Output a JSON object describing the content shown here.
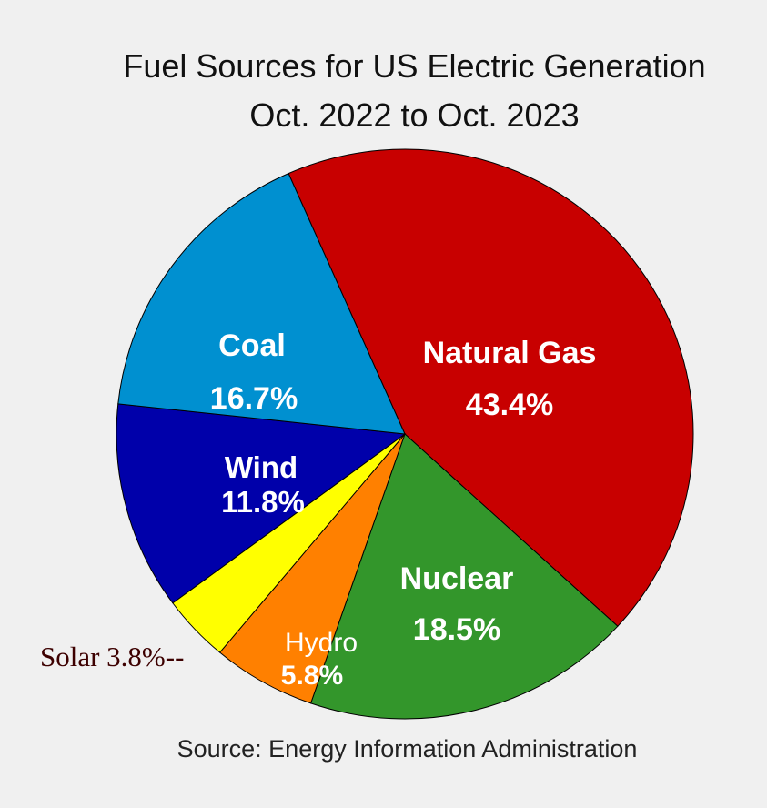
{
  "chart_data": {
    "type": "pie",
    "title": "Fuel Sources for US Electric Generation",
    "subtitle": "Oct. 2022 to Oct. 2023",
    "source": "Source: Energy Information Administration",
    "slices": [
      {
        "name": "Natural Gas",
        "value": 43.4,
        "label": "43.4%",
        "color": "#c80000"
      },
      {
        "name": "Nuclear",
        "value": 18.5,
        "label": "18.5%",
        "color": "#33962b"
      },
      {
        "name": "Hydro",
        "value": 5.8,
        "label": "5.8%",
        "color": "#ff8000"
      },
      {
        "name": "Solar",
        "value": 3.8,
        "label": "3.8%",
        "color": "#ffff00"
      },
      {
        "name": "Wind",
        "value": 11.8,
        "label": "11.8%",
        "color": "#0000aa"
      },
      {
        "name": "Coal",
        "value": 16.7,
        "label": "16.7%",
        "color": "#0090d0"
      }
    ],
    "solar_callout": "Solar 3.8%--"
  }
}
